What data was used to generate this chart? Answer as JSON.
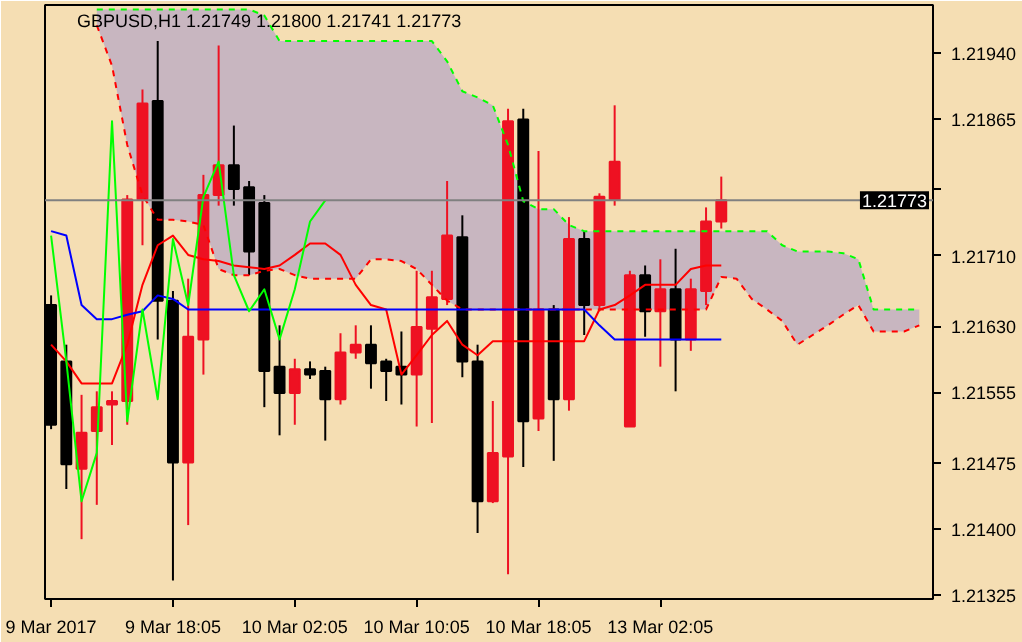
{
  "chart_data": {
    "type": "candlestick",
    "title": "GBPUSD,H1  1.21749 1.21800 1.21741 1.21773",
    "categories": [
      "9 Mar 2017",
      null,
      null,
      null,
      null,
      null,
      null,
      null,
      "9 Mar 18:05",
      null,
      null,
      null,
      null,
      null,
      null,
      null,
      "10 Mar 02:05",
      null,
      null,
      null,
      null,
      null,
      null,
      null,
      "10 Mar 10:05",
      null,
      null,
      null,
      null,
      null,
      null,
      null,
      "10 Mar 18:05",
      null,
      null,
      null,
      null,
      null,
      null,
      null,
      "13 Mar 02:05",
      null,
      null,
      null,
      null,
      null,
      null,
      null,
      null,
      null,
      null,
      null,
      null,
      null,
      null,
      null,
      null,
      null
    ],
    "ohlc": [
      [
        1.21654,
        1.21665,
        1.21513,
        1.21518
      ],
      [
        1.2159,
        1.21609,
        1.21445,
        1.21473
      ],
      [
        1.21468,
        1.21552,
        1.21388,
        1.21509
      ],
      [
        1.21511,
        1.21556,
        1.21427,
        1.21538
      ],
      [
        1.21541,
        1.21556,
        1.21495,
        1.21545
      ],
      [
        1.21545,
        1.21779,
        1.21518,
        1.21774
      ],
      [
        1.21774,
        1.21899,
        1.21722,
        1.21883
      ],
      [
        1.21886,
        1.21954,
        1.21615,
        1.21659
      ],
      [
        1.21659,
        1.2167,
        1.21341,
        1.21475
      ],
      [
        1.21475,
        1.21684,
        1.21404,
        1.21618
      ],
      [
        1.21615,
        1.21802,
        1.21575,
        1.21779
      ],
      [
        1.21779,
        1.21949,
        1.21767,
        1.21813
      ],
      [
        1.21813,
        1.21858,
        1.21767,
        1.21786
      ],
      [
        1.21788,
        1.21795,
        1.21688,
        1.21715
      ],
      [
        1.2177,
        1.21779,
        1.21538,
        1.21579
      ],
      [
        1.21584,
        1.21631,
        1.21506,
        1.21554
      ],
      [
        1.21554,
        1.21593,
        1.21518,
        1.21581
      ],
      [
        1.21581,
        1.2159,
        1.2157,
        1.21575
      ],
      [
        1.21579,
        1.21584,
        1.215,
        1.21547
      ],
      [
        1.21547,
        1.21622,
        1.21541,
        1.216
      ],
      [
        1.216,
        1.21631,
        1.21593,
        1.21609
      ],
      [
        1.21609,
        1.21631,
        1.21559,
        1.21588
      ],
      [
        1.2159,
        1.21593,
        1.21545,
        1.21579
      ],
      [
        1.21584,
        1.21624,
        1.21541,
        1.21575
      ],
      [
        1.21575,
        1.21693,
        1.21516,
        1.21629
      ],
      [
        1.21627,
        1.21693,
        1.2152,
        1.21663
      ],
      [
        1.21661,
        1.21795,
        1.21654,
        1.21733
      ],
      [
        1.21731,
        1.21756,
        1.21572,
        1.2159
      ],
      [
        1.2159,
        1.21609,
        1.21395,
        1.21431
      ],
      [
        1.21431,
        1.21545,
        1.21429,
        1.21486
      ],
      [
        1.21482,
        1.21877,
        1.21348,
        1.21863
      ],
      [
        1.21865,
        1.21877,
        1.2147,
        1.21522
      ],
      [
        1.21525,
        1.21829,
        1.21511,
        1.21649
      ],
      [
        1.21649,
        1.21654,
        1.21477,
        1.21547
      ],
      [
        1.21547,
        1.21754,
        1.21534,
        1.21729
      ],
      [
        1.21729,
        1.21738,
        1.2162,
        1.21654
      ],
      [
        1.21654,
        1.21781,
        1.21647,
        1.21777
      ],
      [
        1.21774,
        1.21881,
        1.21767,
        1.21817
      ],
      [
        1.21516,
        1.21693,
        1.21516,
        1.21688
      ],
      [
        1.21688,
        1.21699,
        1.21618,
        1.21647
      ],
      [
        1.21647,
        1.21706,
        1.21584,
        1.21672
      ],
      [
        1.21672,
        1.21718,
        1.21556,
        1.21615
      ],
      [
        1.21615,
        1.21684,
        1.21602,
        1.21672
      ],
      [
        1.2167,
        1.21765,
        1.21654,
        1.21749
      ],
      [
        1.21749,
        1.218,
        1.21741,
        1.21773
      ],
      null,
      null,
      null,
      null,
      null,
      null,
      null,
      null,
      null,
      null,
      null,
      null,
      null
    ],
    "colors": [
      "#000000",
      "#000000",
      "#ee1122",
      "#ee1122",
      "#ee1122",
      "#ee1122",
      "#ee1122",
      "#000000",
      "#000000",
      "#ee1122",
      "#ee1122",
      "#ee1122",
      "#000000",
      "#000000",
      "#000000",
      "#000000",
      "#ee1122",
      "#000000",
      "#000000",
      "#ee1122",
      "#ee1122",
      "#000000",
      "#000000",
      "#000000",
      "#ee1122",
      "#ee1122",
      "#ee1122",
      "#000000",
      "#000000",
      "#ee1122",
      "#ee1122",
      "#000000",
      "#ee1122",
      "#000000",
      "#ee1122",
      "#000000",
      "#ee1122",
      "#ee1122",
      "#ee1122",
      "#000000",
      "#ee1122",
      "#000000",
      "#ee1122",
      "#ee1122",
      "#ee1122",
      null,
      null,
      null,
      null,
      null,
      null,
      null,
      null,
      null,
      null,
      null,
      null,
      null
    ],
    "series": [
      {
        "type": "line",
        "color": "#00ff00",
        "line_style": "dashed",
        "values": [
          null,
          null,
          null,
          1.2199,
          1.2199,
          1.2199,
          1.2199,
          1.2199,
          1.2199,
          1.2199,
          1.2199,
          1.2199,
          1.2199,
          1.2199,
          1.21983,
          1.21954,
          1.21954,
          1.21954,
          1.21954,
          1.21954,
          1.21954,
          1.21954,
          1.21954,
          1.21954,
          1.21954,
          1.21954,
          1.21931,
          1.21897,
          1.2189,
          1.21881,
          1.21836,
          1.21772,
          1.21763,
          1.21763,
          1.21745,
          1.21738,
          1.21738,
          1.21738,
          1.21738,
          1.21738,
          1.21738,
          1.21738,
          1.21738,
          1.21738,
          1.21738,
          1.21738,
          1.21738,
          1.21738,
          1.21722,
          1.21715,
          1.21715,
          1.21715,
          1.21713,
          1.21706,
          1.21649,
          1.21649,
          1.21649,
          1.21649
        ],
        "upper": [
          null,
          null,
          null,
          1.2199,
          1.2199,
          1.2199,
          1.2199,
          1.2199,
          1.2199,
          1.2199,
          1.2199,
          1.2199,
          1.2199,
          1.2199,
          1.21983,
          1.21954,
          1.21954,
          1.21954,
          1.21954,
          1.21954,
          1.21954,
          1.21954,
          1.21954,
          1.21954,
          1.21954,
          1.21954,
          1.21931,
          1.21897,
          1.2189,
          1.21881,
          1.21836,
          1.21772,
          1.21763,
          1.21763,
          1.21745,
          1.21738,
          1.21738,
          1.21738,
          1.21738,
          1.21738,
          1.21738,
          1.21738,
          1.21738,
          1.21738,
          1.21738,
          1.21738,
          1.21738,
          1.21738,
          1.21722,
          1.21715,
          1.21715,
          1.21715,
          1.21713,
          1.21706,
          1.21649,
          1.21649,
          1.21649,
          1.21649
        ],
        "lower": [
          null,
          null,
          null,
          1.21972,
          1.21926,
          1.21836,
          1.21779,
          1.21751,
          1.21751,
          1.21749,
          1.21745,
          1.21695,
          1.21688,
          1.21688,
          1.21693,
          1.21695,
          1.21688,
          1.21684,
          1.21684,
          1.21684,
          1.21684,
          1.21706,
          1.21706,
          1.21704,
          1.21695,
          1.21677,
          1.21659,
          1.21649,
          1.21649,
          1.21649,
          1.21649,
          1.21649,
          1.21649,
          1.21649,
          1.21649,
          1.21649,
          1.21649,
          1.21649,
          1.21649,
          1.21649,
          1.21649,
          1.21649,
          1.21649,
          1.21649,
          1.21686,
          1.21684,
          1.21661,
          1.21649,
          1.21636,
          1.21609,
          1.2162,
          1.21631,
          1.21643,
          1.21654,
          1.21624,
          1.21624,
          1.21624,
          1.21631
        ]
      },
      {
        "type": "line",
        "color": "#ff0000",
        "line_style": "dashed",
        "values": [
          null,
          null,
          null,
          1.21972,
          1.21926,
          1.21836,
          1.21779,
          1.21751,
          1.21751,
          1.21749,
          1.21745,
          1.21695,
          1.21688,
          1.21688,
          1.21693,
          1.21695,
          1.21688,
          1.21684,
          1.21684,
          1.21684,
          1.21684,
          1.21706,
          1.21706,
          1.21704,
          1.21695,
          1.21677,
          1.21659,
          1.21649,
          1.21649,
          1.21649,
          1.21649,
          1.21649,
          1.21649,
          1.21649,
          1.21649,
          1.21649,
          1.21649,
          1.21649,
          1.21649,
          1.21649,
          1.21649,
          1.21649,
          1.21649,
          1.21649,
          1.21686,
          1.21684,
          1.21661,
          1.21649,
          1.21636,
          1.21609,
          1.2162,
          1.21631,
          1.21643,
          1.21654,
          1.21624,
          1.21624,
          1.21624,
          1.21631
        ]
      },
      {
        "type": "line",
        "color": "#ff0000",
        "line_style": "solid",
        "values": [
          1.21609,
          1.2159,
          1.21565,
          1.21565,
          1.21565,
          1.21609,
          1.21677,
          1.21722,
          1.21733,
          1.21711,
          1.21706,
          1.21704,
          1.21699,
          1.21697,
          1.21695,
          1.21699,
          1.21711,
          1.21724,
          1.21724,
          1.21711,
          1.21677,
          1.21654,
          1.21649,
          1.21575,
          1.21597,
          1.2162,
          1.21636,
          1.21609,
          1.21597,
          1.21613,
          1.21613,
          1.21613,
          1.21613,
          1.21613,
          1.21613,
          1.21613,
          1.21649,
          1.21654,
          1.21665,
          1.21677,
          1.21677,
          1.21677,
          1.21695,
          1.21699,
          1.21699,
          null,
          null,
          null,
          null,
          null,
          null,
          null,
          null,
          null,
          null,
          null,
          null,
          null
        ]
      },
      {
        "type": "line",
        "color": "#0000ff",
        "line_style": "solid",
        "values": [
          1.21738,
          1.21733,
          1.21654,
          1.21638,
          1.21638,
          1.21643,
          1.21647,
          1.21665,
          1.21661,
          1.21649,
          1.21649,
          1.21649,
          1.21649,
          1.21649,
          1.21649,
          1.21649,
          1.21649,
          1.21649,
          1.21649,
          1.21649,
          1.21649,
          1.21649,
          1.21649,
          1.21649,
          1.21649,
          1.21649,
          1.21649,
          1.21649,
          1.21649,
          1.21649,
          1.21649,
          1.21649,
          1.21649,
          1.21649,
          1.21649,
          1.21649,
          1.21631,
          1.21615,
          1.21615,
          1.21615,
          1.21615,
          1.21615,
          1.21615,
          1.21615,
          1.21615,
          null,
          null,
          null,
          null,
          null,
          null,
          null,
          null,
          null,
          null,
          null,
          null,
          null
        ]
      },
      {
        "type": "line",
        "color": "#00ff00",
        "line_style": "solid",
        "values": [
          1.21733,
          1.2159,
          1.21431,
          1.21486,
          1.21863,
          1.21522,
          1.21649,
          1.21547,
          1.21729,
          1.21654,
          1.21777,
          1.21817,
          1.21688,
          1.21647,
          1.21672,
          1.21615,
          1.21672,
          1.21749,
          1.21773,
          null,
          null,
          null,
          null,
          null,
          null,
          null,
          null,
          null,
          null,
          null,
          null,
          null,
          null,
          null,
          null,
          null,
          null,
          null,
          null,
          null,
          null,
          null,
          null,
          null,
          null,
          null,
          null,
          null,
          null,
          null,
          null,
          null,
          null,
          null,
          null,
          null,
          null,
          null
        ]
      }
    ],
    "ylim": [
      1.2132,
      1.21995
    ],
    "yticks": [
      {
        "value": 1.21325,
        "label": "1.21325"
      },
      {
        "value": 1.214,
        "label": "1.21400"
      },
      {
        "value": 1.21475,
        "label": "1.21475"
      },
      {
        "value": 1.21555,
        "label": "1.21555"
      },
      {
        "value": 1.2163,
        "label": "1.21630"
      },
      {
        "value": 1.2171,
        "label": "1.21710"
      },
      {
        "value": 1.21785,
        "label": null
      },
      {
        "value": 1.21865,
        "label": "1.21865"
      },
      {
        "value": 1.2194,
        "label": "1.21940"
      }
    ],
    "ref_lines": [
      {
        "axis": "y",
        "value": 1.21773,
        "label": "1.21773",
        "color": "#808080"
      }
    ]
  }
}
